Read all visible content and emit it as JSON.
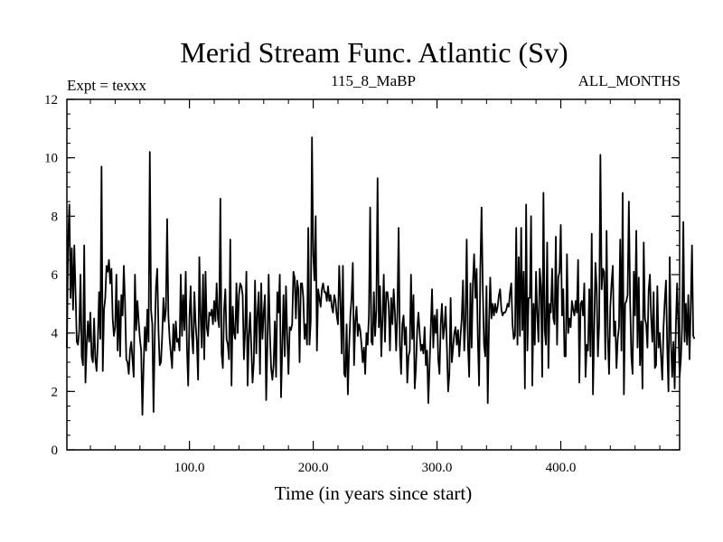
{
  "chart_data": {
    "type": "line",
    "title": "Merid Stream Func. Atlantic (Sv)",
    "subtitle_left": "Expt = texxx",
    "subtitle_center": "115_8_MaBP",
    "subtitle_right": "ALL_MONTHS",
    "xlabel": "Time (in years since start)",
    "ylabel": "",
    "xlim": [
      1,
      496
    ],
    "ylim": [
      0,
      12
    ],
    "x_ticks": [
      100,
      200,
      300,
      400
    ],
    "x_tick_labels": [
      "100.0",
      "200.0",
      "300.0",
      "400.0"
    ],
    "y_ticks": [
      0,
      2,
      4,
      6,
      8,
      10,
      12
    ],
    "y_tick_labels": [
      "0",
      "2",
      "4",
      "6",
      "8",
      "10",
      "12"
    ],
    "x_minor_step": 20,
    "y_minor_step": 0.5,
    "series": [
      {
        "name": "Merid Stream Func. Atlantic",
        "color": "#000000",
        "x_start": 1,
        "x_step": 1,
        "values": [
          3.5,
          7.2,
          8.4,
          5.2,
          6.9,
          4.8,
          7.0,
          5.4,
          3.7,
          3.6,
          4.1,
          6.0,
          3.2,
          2.9,
          7.0,
          2.3,
          3.6,
          4.4,
          3.7,
          4.7,
          3.2,
          3.0,
          4.5,
          3.1,
          2.7,
          3.7,
          5.4,
          3.8,
          9.7,
          2.7,
          4.8,
          5.2,
          6.3,
          6.1,
          6.5,
          5.7,
          6.2,
          4.5,
          3.9,
          4.2,
          6.0,
          3.4,
          5.1,
          3.2,
          5.3,
          4.6,
          6.3,
          5.0,
          3.1,
          3.0,
          2.6,
          3.4,
          3.7,
          3.1,
          2.5,
          6.0,
          4.1,
          5.1,
          4.4,
          3.8,
          3.4,
          1.2,
          2.9,
          4.2,
          3.4,
          4.8,
          3.7,
          10.2,
          4.8,
          4.3,
          1.3,
          3.9,
          5.6,
          6.2,
          4.1,
          2.9,
          3.0,
          3.9,
          5.2,
          4.4,
          4.8,
          7.9,
          4.6,
          3.8,
          3.3,
          2.8,
          4.3,
          3.4,
          4.4,
          3.7,
          3.8,
          3.4,
          6.0,
          3.9,
          5.3,
          4.1,
          6.1,
          3.5,
          2.2,
          4.5,
          5.6,
          3.9,
          3.3,
          5.4,
          4.3,
          3.7,
          2.4,
          6.6,
          4.6,
          3.5,
          6.0,
          3.1,
          6.1,
          4.2,
          3.9,
          4.7,
          4.6,
          4.8,
          4.3,
          5.1,
          4.4,
          5.7,
          4.5,
          4.2,
          8.6,
          3.3,
          2.8,
          4.8,
          5.5,
          3.8,
          3.6,
          3.1,
          7.2,
          2.2,
          4.9,
          4.0,
          3.8,
          5.7,
          4.0,
          5.3,
          5.7,
          5.6,
          5.3,
          3.1,
          4.1,
          6.1,
          2.2,
          3.9,
          4.7,
          3.5,
          2.3,
          3.0,
          5.8,
          3.3,
          4.7,
          5.4,
          2.6,
          5.7,
          3.8,
          4.7,
          5.3,
          1.7,
          3.6,
          6.0,
          4.0,
          2.8,
          2.4,
          2.9,
          4.4,
          2.5,
          5.4,
          4.7,
          6.0,
          1.8,
          3.5,
          5.3,
          3.2,
          5.6,
          3.9,
          2.6,
          4.2,
          4.1,
          4.3,
          6.1,
          5.9,
          4.5,
          5.8,
          5.5,
          3.0,
          5.7,
          5.7,
          5.2,
          3.8,
          4.3,
          3.6,
          7.6,
          3.6,
          4.4,
          10.7,
          6.7,
          5.8,
          8.0,
          3.4,
          5.5,
          5.2,
          4.9,
          5.5,
          5.7,
          5.4,
          5.4,
          5.1,
          5.6,
          5.1,
          5.3,
          4.9,
          4.7,
          5.3,
          5.1,
          4.6,
          4.3,
          6.3,
          5.1,
          3.3,
          6.3,
          2.6,
          2.5,
          4.3,
          1.9,
          3.5,
          4.6,
          5.2,
          6.4,
          2.9,
          4.4,
          4.9,
          3.9,
          4.3,
          4.1,
          3.6,
          3.0,
          3.5,
          2.6,
          4.0,
          3.6,
          4.6,
          8.3,
          3.7,
          3.6,
          5.4,
          3.9,
          4.8,
          9.3,
          4.2,
          5.6,
          3.2,
          4.5,
          6.0,
          3.7,
          5.4,
          5.4,
          4.9,
          3.4,
          5.2,
          4.3,
          5.5,
          4.7,
          3.4,
          4.7,
          7.6,
          3.6,
          2.6,
          4.3,
          4.6,
          3.6,
          4.2,
          2.3,
          3.2,
          3.4,
          6.0,
          3.8,
          5.3,
          2.1,
          2.8,
          4.1,
          4.7,
          4.0,
          3.4,
          3.6,
          3.3,
          4.2,
          2.9,
          3.4,
          1.6,
          2.9,
          4.2,
          5.5,
          3.5,
          4.6,
          4.0,
          4.8,
          3.1,
          2.6,
          4.3,
          5.0,
          3.8,
          4.2,
          4.9,
          3.5,
          2.0,
          2.6,
          5.2,
          3.0,
          3.5,
          4.0,
          4.2,
          3.6,
          4.1,
          3.2,
          3.9,
          4.5,
          5.8,
          3.4,
          4.4,
          7.2,
          3.6,
          2.5,
          5.7,
          3.5,
          5.7,
          6.7,
          5.2,
          6.2,
          3.8,
          2.2,
          6.2,
          8.3,
          5.5,
          3.6,
          3.2,
          5.6,
          1.6,
          4.3,
          5.9,
          4.5,
          5.0,
          4.6,
          5.0,
          4.7,
          4.9,
          5.3,
          5.5,
          4.8,
          4.6,
          4.7,
          4.7,
          4.8,
          5.0,
          4.9,
          5.4,
          5.7,
          4.3,
          3.8,
          3.9,
          7.6,
          3.6,
          6.6,
          3.9,
          7.6,
          4.1,
          6.1,
          2.1,
          8.4,
          3.4,
          5.2,
          5.2,
          8.0,
          2.2,
          5.0,
          3.6,
          6.1,
          4.6,
          3.7,
          6.2,
          5.6,
          2.5,
          8.8,
          4.1,
          3.6,
          7.1,
          2.8,
          5.0,
          4.7,
          6.2,
          4.5,
          4.3,
          7.3,
          3.6,
          5.9,
          6.1,
          7.7,
          4.6,
          5.5,
          3.2,
          3.2,
          6.7,
          4.0,
          4.5,
          4.2,
          5.1,
          4.8,
          4.6,
          5.1,
          4.7,
          6.5,
          2.3,
          5.0,
          5.1,
          4.6,
          5.7,
          2.5,
          3.6,
          3.4,
          5.5,
          3.2,
          7.4,
          1.9,
          4.1,
          6.4,
          5.5,
          3.2,
          4.3,
          10.1,
          5.5,
          6.2,
          6.1,
          3.1,
          7.5,
          3.9,
          2.6,
          4.9,
          5.7,
          6.3,
          3.9,
          4.4,
          2.8,
          3.8,
          4.2,
          7.2,
          3.4,
          8.8,
          1.9,
          5.0,
          5.1,
          5.3,
          8.5,
          5.1,
          3.2,
          2.6,
          6.1,
          4.6,
          7.5,
          3.5,
          5.9,
          2.9,
          4.4,
          2.1,
          7.1,
          4.5,
          4.3,
          3.5,
          5.5,
          6.0,
          4.5,
          3.7,
          5.4,
          2.8,
          2.9,
          5.6,
          3.5,
          4.0,
          3.2,
          2.4,
          4.2,
          5.1,
          5.8,
          3.5,
          2.0,
          6.6,
          3.7,
          2.5,
          3.7,
          2.1,
          4.3,
          5.7,
          4.2,
          2.5,
          3.1,
          4.2,
          7.8,
          3.7,
          5.0,
          3.6,
          5.3,
          3.1,
          4.9,
          7.0,
          3.9,
          3.8
        ]
      }
    ]
  }
}
